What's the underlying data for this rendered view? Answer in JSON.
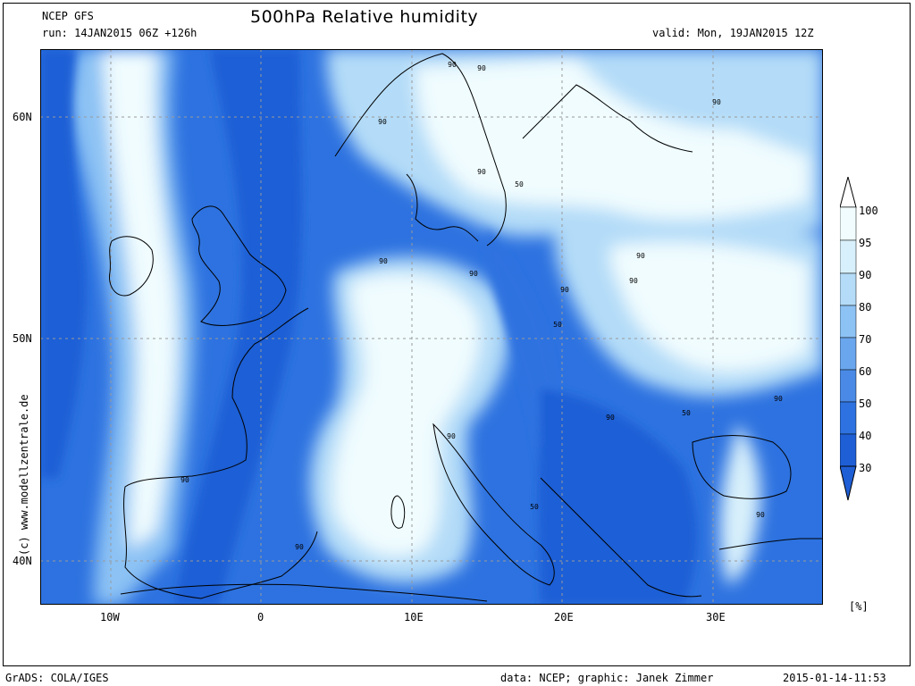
{
  "header": {
    "model": "NCEP GFS",
    "run": "run: 14JAN2015 06Z +126h",
    "title": "500hPa Relative humidity",
    "valid": "valid: Mon, 19JAN2015 12Z"
  },
  "credit": "(c) www.modellzentrale.de",
  "colors": {
    "level_30": "#1f5fd6",
    "level_40": "#2d72e0",
    "level_50": "#4a8ae6",
    "level_60": "#6aa6ee",
    "level_70": "#8cc2f4",
    "level_80": "#b4dcf8",
    "level_90": "#d8f0fb",
    "level_95": "#f0fcfe",
    "coast": "#000000"
  },
  "map": {
    "lat_labels": [
      "60N",
      "50N",
      "40N"
    ],
    "lon_labels": [
      "10W",
      "0",
      "10E",
      "20E",
      "30E"
    ],
    "contour_labels": [
      "90",
      "90",
      "90",
      "90",
      "50",
      "90",
      "90",
      "90",
      "50",
      "90",
      "90",
      "50",
      "90",
      "90",
      "50",
      "90",
      "90",
      "90",
      "90",
      "90"
    ],
    "regions": [
      {
        "name": "north-atlantic-dry",
        "level": 30
      },
      {
        "name": "west-atlantic-moist",
        "level": 95
      },
      {
        "name": "iberia-dry-band",
        "level": 30
      },
      {
        "name": "central-europe-moist",
        "level": 95
      },
      {
        "name": "scandinavia-moist",
        "level": 95
      },
      {
        "name": "eastern-europe-moist",
        "level": 95
      },
      {
        "name": "balkans-dry",
        "level": 30
      },
      {
        "name": "mediterranean-dry",
        "level": 40
      },
      {
        "name": "central-europe-dry-tongue",
        "level": 40
      },
      {
        "name": "black-sea-dry",
        "level": 30
      }
    ]
  },
  "colorbar": {
    "labels": [
      "100",
      "95",
      "90",
      "80",
      "70",
      "60",
      "50",
      "40",
      "30"
    ],
    "unit": "[%]"
  },
  "footer": {
    "left": "GrADS: COLA/IGES",
    "middle": "data: NCEP; graphic: Janek Zimmer",
    "right": "2015-01-14-11:53"
  }
}
